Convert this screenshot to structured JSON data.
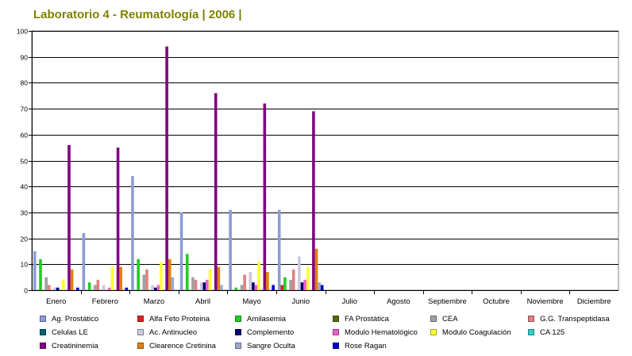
{
  "title": "Laboratorio 4 - Reumatología | 2006 |",
  "chart_data": {
    "type": "bar",
    "title": "Laboratorio 4 - Reumatología | 2006 |",
    "xlabel": "",
    "ylabel": "",
    "ylim": [
      0,
      100
    ],
    "yticks": [
      0,
      10,
      20,
      30,
      40,
      50,
      60,
      70,
      80,
      90,
      100
    ],
    "grid": true,
    "legend_position": "bottom",
    "categories": [
      "Enero",
      "Febrero",
      "Marzo",
      "Abril",
      "Mayo",
      "Junio",
      "Julio",
      "Agosto",
      "Septiembre",
      "Octubre",
      "Noviembre",
      "Diciembre"
    ],
    "series": [
      {
        "name": "Ag. Prostático",
        "color": "#8e9bd8",
        "values": [
          15,
          22,
          44,
          30,
          31,
          31,
          0,
          0,
          0,
          0,
          0,
          0
        ]
      },
      {
        "name": "Alfa Feto Proteina",
        "color": "#dd2222",
        "values": [
          0,
          0,
          0,
          0,
          0,
          2,
          0,
          0,
          0,
          0,
          0,
          0
        ]
      },
      {
        "name": "Amilasemia",
        "color": "#22cc22",
        "values": [
          12,
          3,
          12,
          14,
          1,
          5,
          0,
          0,
          0,
          0,
          0,
          0
        ]
      },
      {
        "name": "FA Prostática",
        "color": "#556b00",
        "values": [
          0,
          0,
          0,
          0,
          0,
          0,
          0,
          0,
          0,
          0,
          0,
          0
        ]
      },
      {
        "name": "CEA",
        "color": "#a0a0a0",
        "values": [
          5,
          2,
          6,
          5,
          2,
          4,
          0,
          0,
          0,
          0,
          0,
          0
        ]
      },
      {
        "name": "G.G. Transpeptidasa",
        "color": "#e08080",
        "values": [
          2,
          4,
          8,
          4,
          6,
          8,
          0,
          0,
          0,
          0,
          0,
          0
        ]
      },
      {
        "name": "Celulas LE",
        "color": "#006070",
        "values": [
          0,
          0,
          0,
          0,
          0,
          0,
          0,
          0,
          0,
          0,
          0,
          0
        ]
      },
      {
        "name": "Ac. Antinucleo",
        "color": "#c8c8e0",
        "values": [
          1,
          2,
          2,
          3,
          7,
          13,
          0,
          0,
          0,
          0,
          0,
          0
        ]
      },
      {
        "name": "Complemento",
        "color": "#000070",
        "values": [
          1,
          0,
          1,
          3,
          3,
          3,
          0,
          0,
          0,
          0,
          0,
          0
        ]
      },
      {
        "name": "Modulo Hematológico",
        "color": "#ee60cc",
        "values": [
          0,
          1,
          2,
          4,
          2,
          4,
          0,
          0,
          0,
          0,
          0,
          0
        ]
      },
      {
        "name": "Modulo Coagulación",
        "color": "#ffff33",
        "values": [
          4,
          9,
          11,
          8,
          11,
          9,
          0,
          0,
          0,
          0,
          0,
          0
        ]
      },
      {
        "name": "CA 125",
        "color": "#33cccc",
        "values": [
          0,
          0,
          0,
          0,
          0,
          0,
          0,
          0,
          0,
          0,
          0,
          0
        ]
      },
      {
        "name": "Creatininemia",
        "color": "#800080",
        "values": [
          56,
          55,
          94,
          76,
          72,
          69,
          0,
          0,
          0,
          0,
          0,
          0
        ]
      },
      {
        "name": "Clearence Cretinina",
        "color": "#e07f10",
        "values": [
          8,
          9,
          12,
          9,
          7,
          16,
          0,
          0,
          0,
          0,
          0,
          0
        ]
      },
      {
        "name": "Sangre Oculta",
        "color": "#99aacc",
        "values": [
          0,
          0,
          5,
          2,
          0,
          3,
          0,
          0,
          0,
          0,
          0,
          0
        ]
      },
      {
        "name": "Rose Ragan",
        "color": "#0000cc",
        "values": [
          1,
          1,
          0,
          0,
          2,
          2,
          0,
          0,
          0,
          0,
          0,
          0
        ]
      }
    ]
  }
}
